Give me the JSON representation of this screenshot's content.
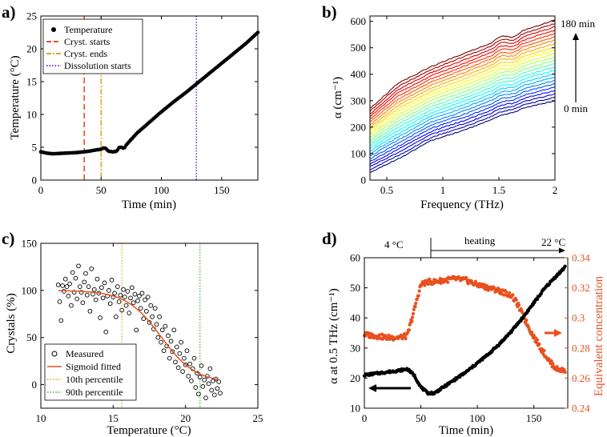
{
  "chart_data": [
    {
      "id": "a",
      "panel_label": "a)",
      "type": "line",
      "title": "",
      "xlabel": "Time (min)",
      "ylabel": "Temperature (°C)",
      "xlim": [
        0,
        180
      ],
      "ylim": [
        0,
        25
      ],
      "xticks": [
        "0",
        "50",
        "100",
        "150"
      ],
      "yticks": [
        "0",
        "5",
        "10",
        "15",
        "20",
        "25"
      ],
      "legend": [
        "Temperature",
        "Cryst. starts",
        "Cryst. ends",
        "Dissolution starts"
      ],
      "legend_location": "top-left",
      "colors": {
        "temperature": "#000000",
        "cryst_starts": "#e8501e",
        "cryst_ends": "#e0a81e",
        "dissolution": "#8a2bd0"
      },
      "vlines": [
        {
          "name": "Cryst. starts",
          "x": 36
        },
        {
          "name": "Cryst. ends",
          "x": 50
        },
        {
          "name": "Dissolution starts",
          "x": 129
        }
      ],
      "series": [
        {
          "name": "Temperature",
          "x": [
            0,
            5,
            10,
            20,
            30,
            40,
            46,
            50,
            52,
            54,
            56,
            60,
            63,
            65,
            67,
            69,
            71,
            74,
            80,
            90,
            100,
            110,
            120,
            130,
            140,
            150,
            160,
            170,
            180
          ],
          "y": [
            4.3,
            4.1,
            4.0,
            4.1,
            4.2,
            4.4,
            4.6,
            4.7,
            4.9,
            4.8,
            4.4,
            4.3,
            4.4,
            5.0,
            5.0,
            4.8,
            5.4,
            6.0,
            7.2,
            8.8,
            10.4,
            11.9,
            13.3,
            14.8,
            16.3,
            17.8,
            19.3,
            20.8,
            22.5
          ]
        }
      ]
    },
    {
      "id": "b",
      "panel_label": "b)",
      "type": "line",
      "title": "",
      "xlabel": "Frequency (THz)",
      "ylabel": "α (cm⁻¹)",
      "xlim": [
        0.35,
        2.0
      ],
      "ylim": [
        0,
        620
      ],
      "xticks": [
        "0.5",
        "1",
        "1.5",
        "2"
      ],
      "yticks": [
        "0",
        "100",
        "200",
        "300",
        "400",
        "500",
        "600"
      ],
      "annotations": [
        "180 min",
        "0 min"
      ],
      "x": [
        0.35,
        0.6,
        0.9,
        1.2,
        1.5,
        1.75,
        2.0
      ],
      "curve_count": 25,
      "first_curve": [
        30,
        80,
        150,
        190,
        240,
        275,
        300
      ],
      "last_curve": [
        270,
        365,
        430,
        480,
        530,
        570,
        605
      ],
      "colormap": "jet (blue = 0 min → red = 180 min)"
    },
    {
      "id": "c",
      "panel_label": "c)",
      "type": "scatter",
      "title": "",
      "xlabel": "Temperature (°C)",
      "ylabel": "Crystals (%)",
      "xlim": [
        10,
        25
      ],
      "ylim": [
        -25,
        150
      ],
      "xticks": [
        "10",
        "15",
        "20",
        "25"
      ],
      "yticks": [
        "0",
        "50",
        "100",
        "150"
      ],
      "legend": [
        "Measured",
        "Sigmoid fitted",
        "10th percentile",
        "90th percentile"
      ],
      "legend_location": "bottom-left",
      "colors": {
        "sigmoid": "#e8501e",
        "p10": "#e0a81e",
        "p90": "#3ab53a"
      },
      "vlines": [
        {
          "name": "10th percentile",
          "x": 15.6
        },
        {
          "name": "90th percentile",
          "x": 21.0
        }
      ],
      "sigmoid": {
        "top": 100,
        "bottom": 2,
        "mid": 18.3,
        "scale": 1.2
      },
      "measured_points": [
        [
          11.2,
          106
        ],
        [
          11.3,
          88
        ],
        [
          11.4,
          68
        ],
        [
          11.5,
          105
        ],
        [
          11.6,
          99
        ],
        [
          11.7,
          112
        ],
        [
          11.8,
          104
        ],
        [
          11.9,
          94
        ],
        [
          12.0,
          107
        ],
        [
          12.1,
          84
        ],
        [
          12.2,
          119
        ],
        [
          12.3,
          98
        ],
        [
          12.4,
          113
        ],
        [
          12.5,
          91
        ],
        [
          12.6,
          126
        ],
        [
          12.7,
          104
        ],
        [
          12.8,
          98
        ],
        [
          12.9,
          87
        ],
        [
          13.0,
          109
        ],
        [
          13.1,
          118
        ],
        [
          13.2,
          95
        ],
        [
          13.3,
          104
        ],
        [
          13.4,
          78
        ],
        [
          13.5,
          123
        ],
        [
          13.6,
          96
        ],
        [
          13.7,
          101
        ],
        [
          13.8,
          90
        ],
        [
          13.9,
          112
        ],
        [
          14.0,
          97
        ],
        [
          14.1,
          71
        ],
        [
          14.2,
          103
        ],
        [
          14.3,
          92
        ],
        [
          14.4,
          108
        ],
        [
          14.5,
          56
        ],
        [
          14.6,
          94
        ],
        [
          14.7,
          100
        ],
        [
          14.8,
          86
        ],
        [
          14.9,
          111
        ],
        [
          15.0,
          93
        ],
        [
          15.1,
          97
        ],
        [
          15.2,
          72
        ],
        [
          15.3,
          104
        ],
        [
          15.4,
          88
        ],
        [
          15.5,
          95
        ],
        [
          15.6,
          79
        ],
        [
          15.7,
          101
        ],
        [
          15.8,
          93
        ],
        [
          15.9,
          84
        ],
        [
          16.0,
          99
        ],
        [
          16.1,
          76
        ],
        [
          16.2,
          92
        ],
        [
          16.3,
          103
        ],
        [
          16.4,
          87
        ],
        [
          16.5,
          96
        ],
        [
          16.6,
          58
        ],
        [
          16.7,
          89
        ],
        [
          16.8,
          94
        ],
        [
          16.9,
          81
        ],
        [
          17.0,
          97
        ],
        [
          17.1,
          70
        ],
        [
          17.2,
          90
        ],
        [
          17.3,
          78
        ],
        [
          17.4,
          93
        ],
        [
          17.5,
          66
        ],
        [
          17.6,
          84
        ],
        [
          17.7,
          72
        ],
        [
          17.8,
          59
        ],
        [
          17.9,
          81
        ],
        [
          18.0,
          64
        ],
        [
          18.1,
          50
        ],
        [
          18.2,
          72
        ],
        [
          18.3,
          45
        ],
        [
          18.4,
          58
        ],
        [
          18.5,
          36
        ],
        [
          18.6,
          62
        ],
        [
          18.7,
          41
        ],
        [
          18.8,
          52
        ],
        [
          18.9,
          28
        ],
        [
          19.0,
          46
        ],
        [
          19.1,
          35
        ],
        [
          19.2,
          58
        ],
        [
          19.3,
          24
        ],
        [
          19.4,
          40
        ],
        [
          19.5,
          18
        ],
        [
          19.6,
          33
        ],
        [
          19.7,
          45
        ],
        [
          19.8,
          14
        ],
        [
          19.9,
          28
        ],
        [
          20.0,
          21
        ],
        [
          20.1,
          36
        ],
        [
          20.2,
          9
        ],
        [
          20.3,
          22
        ],
        [
          20.4,
          4
        ],
        [
          20.5,
          17
        ],
        [
          20.6,
          28
        ],
        [
          20.7,
          -3
        ],
        [
          20.8,
          12
        ],
        [
          20.9,
          -10
        ],
        [
          21.0,
          8
        ],
        [
          21.1,
          20
        ],
        [
          21.2,
          -2
        ],
        [
          21.3,
          5
        ],
        [
          21.4,
          -14
        ],
        [
          21.5,
          9
        ],
        [
          21.6,
          1
        ],
        [
          21.7,
          17
        ],
        [
          21.8,
          -6
        ],
        [
          21.9,
          4
        ],
        [
          22.0,
          -11
        ],
        [
          22.1,
          6
        ],
        [
          22.2,
          -4
        ],
        [
          22.3,
          3
        ],
        [
          22.4,
          -9
        ]
      ]
    },
    {
      "id": "d",
      "panel_label": "d)",
      "type": "scatter",
      "title": "",
      "xlabel": "Time (min)",
      "ylabel": "α at 0.5 THz (cm⁻¹)",
      "ylabel_right": "Equivalent concentration",
      "xlim": [
        0,
        180
      ],
      "ylim": [
        10,
        60
      ],
      "ylim_right": [
        0.24,
        0.34
      ],
      "xticks": [
        "0",
        "50",
        "100",
        "150"
      ],
      "yticks": [
        "10",
        "20",
        "30",
        "40",
        "50",
        "60"
      ],
      "yticks_right": [
        "0.24",
        "0.26",
        "0.28",
        "0.3",
        "0.32",
        "0.34"
      ],
      "annotations": [
        "4 °C",
        "heating",
        "22 °C"
      ],
      "colors": {
        "alpha": "#000000",
        "concentration": "#e8501e"
      },
      "series": [
        {
          "name": "α at 0.5 THz",
          "axis": "left",
          "x": [
            0,
            10,
            20,
            30,
            38,
            44,
            50,
            56,
            62,
            70,
            80,
            90,
            100,
            110,
            120,
            130,
            140,
            150,
            160,
            170,
            178
          ],
          "y": [
            21,
            21.5,
            22,
            22.5,
            23,
            21,
            17,
            15,
            15,
            17,
            19.5,
            22,
            25,
            28,
            31.5,
            35.5,
            40,
            45,
            50,
            54,
            57
          ]
        },
        {
          "name": "Equivalent concentration",
          "axis": "right",
          "x": [
            0,
            10,
            20,
            30,
            38,
            44,
            50,
            56,
            62,
            70,
            80,
            90,
            100,
            110,
            120,
            130,
            135,
            140,
            148,
            156,
            164,
            170,
            178
          ],
          "y": [
            0.289,
            0.288,
            0.287,
            0.287,
            0.288,
            0.305,
            0.322,
            0.324,
            0.324,
            0.325,
            0.326,
            0.325,
            0.322,
            0.32,
            0.318,
            0.315,
            0.31,
            0.302,
            0.29,
            0.28,
            0.271,
            0.266,
            0.265
          ]
        }
      ]
    }
  ]
}
